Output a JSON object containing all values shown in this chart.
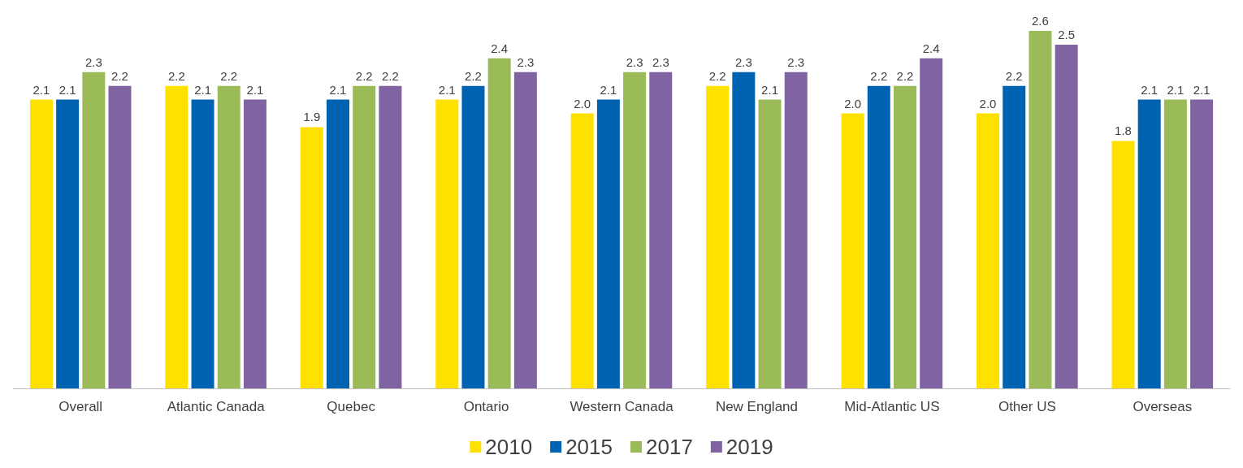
{
  "chart_data": {
    "type": "bar",
    "categories": [
      "Overall",
      "Atlantic Canada",
      "Quebec",
      "Ontario",
      "Western Canada",
      "New England",
      "Mid-Atlantic US",
      "Other US",
      "Overseas"
    ],
    "series": [
      {
        "name": "2010",
        "color": "#ffe100",
        "values": [
          2.1,
          2.2,
          1.9,
          2.1,
          2.0,
          2.2,
          2.0,
          2.0,
          1.8
        ],
        "value_labels": [
          "2.1",
          "2.2",
          "1.9",
          "2.1",
          "2.0",
          "2.2",
          "2.0",
          "2.0",
          "1.8"
        ]
      },
      {
        "name": "2015",
        "color": "#0063b1",
        "values": [
          2.1,
          2.1,
          2.1,
          2.2,
          2.1,
          2.3,
          2.2,
          2.2,
          2.1
        ],
        "value_labels": [
          "2.1",
          "2.1",
          "2.1",
          "2.2",
          "2.1",
          "2.3",
          "2.2",
          "2.2",
          "2.1"
        ]
      },
      {
        "name": "2017",
        "color": "#9bbb59",
        "values": [
          2.3,
          2.2,
          2.2,
          2.4,
          2.3,
          2.1,
          2.2,
          2.6,
          2.1
        ],
        "value_labels": [
          "2.3",
          "2.2",
          "2.2",
          "2.4",
          "2.3",
          "2.1",
          "2.2",
          "2.6",
          "2.1"
        ]
      },
      {
        "name": "2019",
        "color": "#8064a2",
        "values": [
          2.2,
          2.1,
          2.2,
          2.3,
          2.3,
          2.3,
          2.4,
          2.5,
          2.1
        ],
        "value_labels": [
          "2.2",
          "2.1",
          "2.2",
          "2.3",
          "2.3",
          "2.3",
          "2.4",
          "2.5",
          "2.1"
        ]
      }
    ],
    "legend": "bottom",
    "grid": false
  }
}
